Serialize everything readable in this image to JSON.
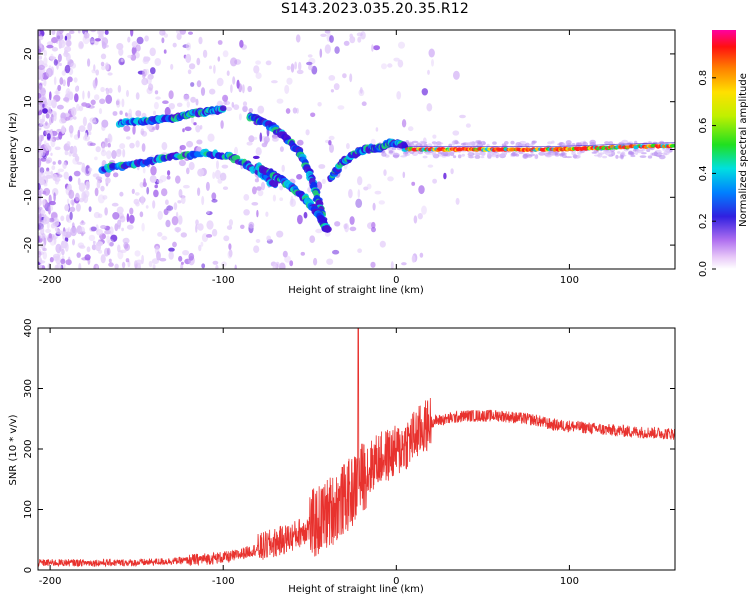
{
  "title": "S143.2023.035.20.35.R12",
  "colors": {
    "snr_line": "#e8322e",
    "spectrum_points": "#5a10e0",
    "ridge_high": "#ff2020",
    "ridge_mid": "#20e020"
  },
  "chart_data": [
    {
      "type": "heatmap",
      "name": "spectrogram",
      "xlabel": "Height of straight line (km)",
      "ylabel": "Frequency (Hz)",
      "xlim": [
        -207,
        161
      ],
      "ylim": [
        -25,
        25
      ],
      "x_ticks": [
        -200,
        -100,
        0,
        100
      ],
      "y_ticks": [
        -20,
        -10,
        0,
        10,
        20
      ],
      "colorbar": {
        "label": "Normalized spectral amplitude",
        "range": [
          0.0,
          1.0
        ],
        "ticks": [
          "0.0",
          "0.2",
          "0.4",
          "0.6",
          "0.8"
        ]
      },
      "ridges": [
        {
          "x": [
            -160,
            -145,
            -130,
            -118,
            -108,
            -100
          ],
          "y": [
            5.5,
            6.0,
            6.5,
            7.5,
            8.0,
            8.5
          ]
        },
        {
          "x": [
            -170,
            -150,
            -130,
            -110,
            -95,
            -80,
            -70
          ],
          "y": [
            -4.0,
            -3.0,
            -1.5,
            -0.8,
            -1.5,
            -4.5,
            -7.5
          ]
        },
        {
          "x": [
            -85,
            -75,
            -65,
            -55,
            -48,
            -42
          ],
          "y": [
            7.0,
            5.5,
            3.0,
            -1.0,
            -7.0,
            -15.0
          ]
        },
        {
          "x": [
            -80,
            -70,
            -60,
            -52,
            -45,
            -40
          ],
          "y": [
            -3.5,
            -5.5,
            -8.0,
            -10.5,
            -13.5,
            -17.0
          ]
        },
        {
          "x": [
            -38,
            -32,
            -25,
            -18,
            -10,
            -3,
            5
          ],
          "y": [
            -6.0,
            -3.0,
            -1.0,
            0.0,
            0.5,
            1.5,
            0.8
          ]
        },
        {
          "x": [
            5,
            30,
            60,
            90,
            110,
            130,
            161
          ],
          "y": [
            0.0,
            0.0,
            0.0,
            0.0,
            0.2,
            0.5,
            0.8
          ]
        }
      ]
    },
    {
      "type": "line",
      "name": "snr",
      "xlabel": "Height of straight line (km)",
      "ylabel": "SNR (10 * v/v)",
      "xlim": [
        -207,
        161
      ],
      "ylim": [
        0,
        400
      ],
      "x_ticks": [
        -200,
        -100,
        0,
        100
      ],
      "y_ticks": [
        0,
        100,
        200,
        300,
        400
      ],
      "trend": {
        "x": [
          -207,
          -150,
          -120,
          -95,
          -80,
          -60,
          -45,
          -35,
          -25,
          -18,
          -12,
          -5,
          0,
          10,
          20,
          40,
          60,
          80,
          90,
          100,
          120,
          140,
          161
        ],
        "y": [
          12,
          12,
          16,
          22,
          35,
          55,
          80,
          105,
          130,
          160,
          180,
          190,
          195,
          220,
          245,
          255,
          255,
          248,
          240,
          238,
          232,
          228,
          225
        ]
      },
      "spike": {
        "x": -22,
        "y": 400
      }
    }
  ]
}
